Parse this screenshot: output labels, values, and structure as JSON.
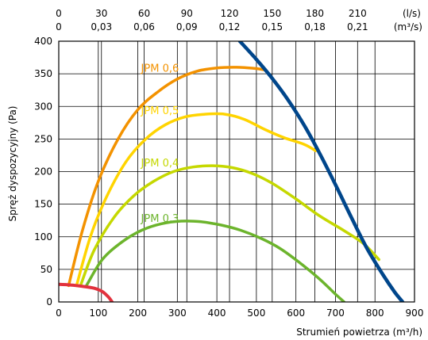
{
  "chart_data": {
    "type": "line",
    "title": "",
    "xlabel": "Strumień powietrza (m³/h)",
    "ylabel": "Spręż dyspozycyjny (Pa)",
    "xlim": [
      0,
      900
    ],
    "ylim": [
      0,
      400
    ],
    "grid": true,
    "x_ticks": [
      "0",
      "100",
      "200",
      "300",
      "400",
      "500",
      "600",
      "700",
      "800",
      "900"
    ],
    "y_ticks": [
      "0",
      "50",
      "100",
      "150",
      "200",
      "250",
      "300",
      "350",
      "400"
    ],
    "top_ticks_ls": [
      "0",
      "30",
      "60",
      "90",
      "120",
      "150",
      "180",
      "210"
    ],
    "top_ticks_m3s": [
      "0",
      "0,03",
      "0,06",
      "0,09",
      "0,12",
      "0,15",
      "0,18",
      "0,21"
    ],
    "top_unit_ls": "(l/s)",
    "top_unit_m3s": "(m³/s)",
    "series": [
      {
        "name": "JPM 0,6",
        "color": "#f39200",
        "points": [
          [
            25,
            25
          ],
          [
            60,
            110
          ],
          [
            100,
            185
          ],
          [
            150,
            250
          ],
          [
            200,
            295
          ],
          [
            250,
            322
          ],
          [
            300,
            342
          ],
          [
            350,
            354
          ],
          [
            400,
            359
          ],
          [
            450,
            360
          ],
          [
            500,
            358
          ],
          [
            520,
            356
          ]
        ]
      },
      {
        "name": "JPM 0,5",
        "color": "#ffd400",
        "points": [
          [
            45,
            25
          ],
          [
            80,
            100
          ],
          [
            120,
            160
          ],
          [
            170,
            215
          ],
          [
            220,
            250
          ],
          [
            270,
            272
          ],
          [
            320,
            284
          ],
          [
            370,
            288
          ],
          [
            420,
            288
          ],
          [
            470,
            280
          ],
          [
            520,
            265
          ],
          [
            570,
            252
          ],
          [
            620,
            242
          ],
          [
            650,
            232
          ]
        ]
      },
      {
        "name": "JPM 0,4",
        "color": "#c5d800",
        "points": [
          [
            55,
            25
          ],
          [
            90,
            80
          ],
          [
            140,
            130
          ],
          [
            190,
            163
          ],
          [
            240,
            185
          ],
          [
            290,
            200
          ],
          [
            340,
            207
          ],
          [
            390,
            209
          ],
          [
            440,
            206
          ],
          [
            490,
            197
          ],
          [
            540,
            182
          ],
          [
            600,
            158
          ],
          [
            660,
            132
          ],
          [
            720,
            110
          ],
          [
            770,
            90
          ],
          [
            810,
            65
          ]
        ]
      },
      {
        "name": "JPM 0,3",
        "color": "#6cb42c",
        "points": [
          [
            70,
            25
          ],
          [
            110,
            65
          ],
          [
            160,
            92
          ],
          [
            210,
            110
          ],
          [
            260,
            120
          ],
          [
            310,
            124
          ],
          [
            360,
            123
          ],
          [
            410,
            118
          ],
          [
            460,
            110
          ],
          [
            510,
            98
          ],
          [
            560,
            82
          ],
          [
            610,
            60
          ],
          [
            660,
            35
          ],
          [
            700,
            12
          ],
          [
            722,
            0
          ]
        ]
      }
    ],
    "system_curve": {
      "color": "#00468b",
      "points": [
        [
          458,
          400
        ],
        [
          500,
          372
        ],
        [
          540,
          343
        ],
        [
          580,
          310
        ],
        [
          620,
          272
        ],
        [
          660,
          228
        ],
        [
          700,
          180
        ],
        [
          740,
          130
        ],
        [
          780,
          82
        ],
        [
          820,
          42
        ],
        [
          850,
          15
        ],
        [
          870,
          0
        ]
      ]
    },
    "min_curve": {
      "color": "#e2323d",
      "points": [
        [
          0,
          27
        ],
        [
          30,
          26
        ],
        [
          60,
          24
        ],
        [
          90,
          21
        ],
        [
          110,
          16
        ],
        [
          125,
          8
        ],
        [
          135,
          0
        ]
      ]
    }
  }
}
